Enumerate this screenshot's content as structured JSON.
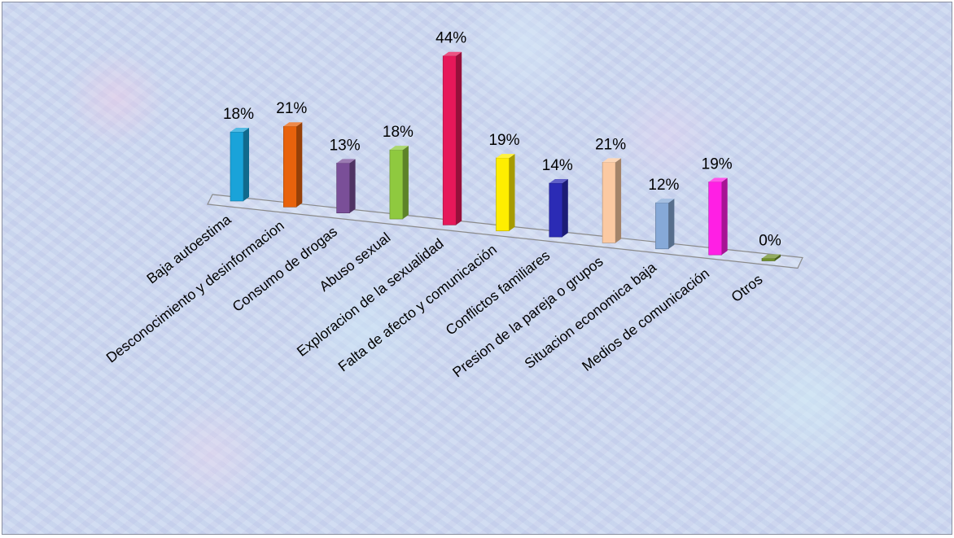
{
  "chart_data": {
    "type": "bar",
    "style": "3d-column",
    "categories": [
      "Baja autoestima",
      "Desconocimiento y desinformacion",
      "Consumo de drogas",
      "Abuso sexual",
      "Exploracion de la sexualidad",
      "Falta de afecto y comunicación",
      "Conflictos familiares",
      "Presion de la pareja o grupos",
      "Situacion economica baja",
      "Medios de comunicación",
      "Otros"
    ],
    "values": [
      18,
      21,
      13,
      18,
      44,
      19,
      14,
      21,
      12,
      19,
      0
    ],
    "value_labels": [
      "18%",
      "21%",
      "13%",
      "18%",
      "44%",
      "19%",
      "14%",
      "21%",
      "12%",
      "19%",
      "0%"
    ],
    "unit": "%",
    "colors": [
      "#1aa3d9",
      "#e8620c",
      "#7a4f98",
      "#8fc93f",
      "#e6185a",
      "#ffee00",
      "#2b2bb5",
      "#fbc9a2",
      "#86a9d8",
      "#ff1fe4",
      "#6e8f2a"
    ],
    "title": "",
    "xlabel": "",
    "ylabel": "",
    "grid": false,
    "legend": "none"
  }
}
